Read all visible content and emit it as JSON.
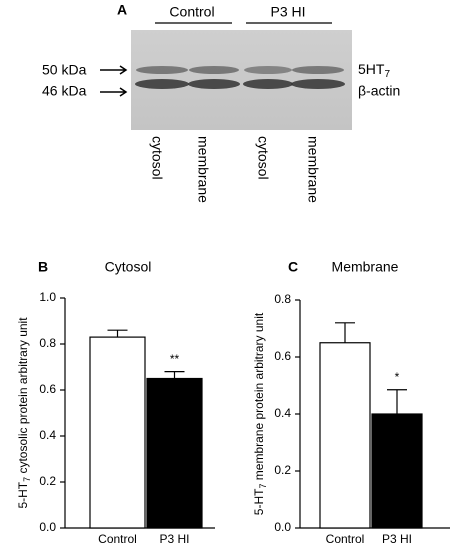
{
  "blot": {
    "panel": "A",
    "groups": [
      "Control",
      "P3 HI"
    ],
    "markers": [
      "50 kDa",
      "46 kDa"
    ],
    "bands": [
      {
        "name": "5HT",
        "sub": "7"
      },
      {
        "name": "β-actin"
      }
    ],
    "lanes": [
      "cytosol",
      "membrane",
      "cytosol",
      "membrane"
    ]
  },
  "chart_data": [
    {
      "type": "bar",
      "panel": "B",
      "title": "Cytosol",
      "y_label": {
        "prefix": "5-HT",
        "sub": "7",
        "rest": " cytosolic protein arbitrary unit"
      },
      "categories": [
        "Control",
        "P3 HI"
      ],
      "values": [
        0.83,
        0.65
      ],
      "errors": [
        0.03,
        0.03
      ],
      "colors": [
        "#ffffff",
        "#000000"
      ],
      "annotation": "**",
      "ylim": [
        0,
        1.0
      ],
      "yticks": [
        {
          "value": 0,
          "label": "0.0"
        },
        0.2,
        0.4,
        0.6,
        0.8,
        {
          "value": 1.0,
          "label": "1.0"
        }
      ]
    },
    {
      "type": "bar",
      "panel": "C",
      "title": "Membrane",
      "y_label": {
        "prefix": "5-HT",
        "sub": "7",
        "rest": " membrane protein arbitrary unit"
      },
      "categories": [
        "Control",
        "P3 HI"
      ],
      "values": [
        0.65,
        0.4
      ],
      "errors": [
        0.07,
        0.085
      ],
      "colors": [
        "#ffffff",
        "#000000"
      ],
      "annotation": "*",
      "ylim": [
        0,
        0.8
      ],
      "yticks": [
        {
          "value": 0,
          "label": "0.0"
        },
        0.2,
        0.4,
        0.6,
        0.8
      ]
    }
  ]
}
